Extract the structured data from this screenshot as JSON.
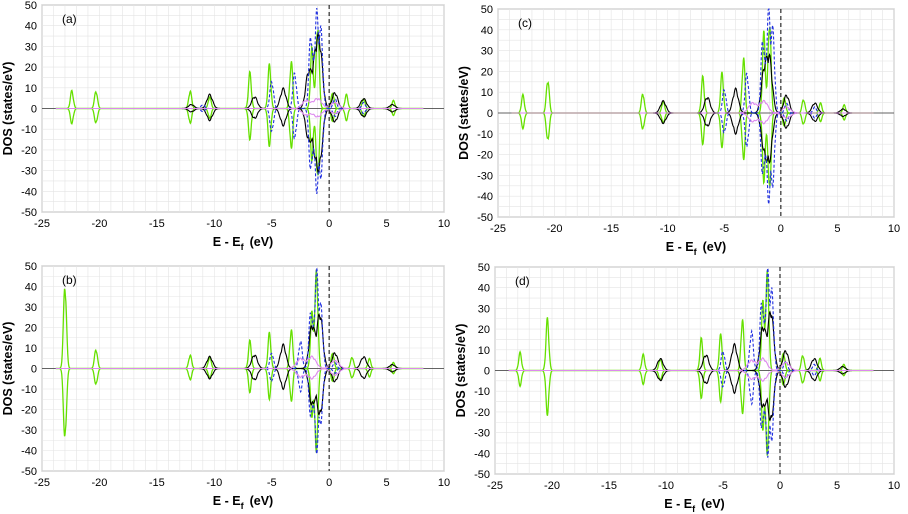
{
  "chart_data": [
    {
      "type": "line",
      "panel_label": "(a)",
      "xlabel_main": "E - E",
      "xlabel_sub": "f",
      "xlabel_unit": "(eV)",
      "ylabel": "DOS (states/eV)",
      "xlim": [
        -25,
        10
      ],
      "ylim": [
        -50,
        50
      ],
      "xticks": [
        "-25",
        "-20",
        "-15",
        "-10",
        "-5",
        "0",
        "5",
        "10"
      ],
      "yticks": [
        "-50",
        "-40",
        "-30",
        "-20",
        "-10",
        "0",
        "10",
        "20",
        "30",
        "40",
        "50"
      ],
      "grid": true,
      "fermi_line_x": 0,
      "series": [
        {
          "color": "#66e000",
          "style": "solid",
          "peaks": [
            [
              -22.4,
              9
            ],
            [
              -20.3,
              9
            ],
            [
              -12.1,
              9
            ],
            [
              -10.4,
              6
            ],
            [
              -6.9,
              18
            ],
            [
              -5.2,
              22
            ],
            [
              -3.3,
              24
            ],
            [
              -1.5,
              30
            ],
            [
              -1,
              44
            ],
            [
              0.3,
              8
            ],
            [
              1.5,
              7
            ],
            [
              3,
              5
            ],
            [
              5.6,
              4
            ]
          ]
        },
        {
          "color": "#000000",
          "style": "solid",
          "peaks": [
            [
              -12,
              2
            ],
            [
              -10.4,
              7
            ],
            [
              -6.5,
              6
            ],
            [
              -4,
              10
            ],
            [
              -1.8,
              18
            ],
            [
              -1.2,
              22
            ],
            [
              -0.8,
              28
            ],
            [
              0.5,
              8
            ],
            [
              3,
              5
            ],
            [
              5.5,
              2
            ]
          ]
        },
        {
          "color": "#2030e0",
          "style": "dashed",
          "peaks": [
            [
              -11,
              2
            ],
            [
              -5,
              14
            ],
            [
              -3,
              18
            ],
            [
              -1.6,
              38
            ],
            [
              -1.1,
              47
            ],
            [
              -0.7,
              38
            ],
            [
              0.5,
              5
            ],
            [
              3,
              3
            ]
          ]
        },
        {
          "color": "#dd88ee",
          "style": "solid",
          "peaks": [
            [
              -2,
              4
            ],
            [
              -1,
              5
            ],
            [
              0.5,
              3
            ]
          ]
        }
      ]
    },
    {
      "type": "line",
      "panel_label": "(b)",
      "xlabel_main": "E - E",
      "xlabel_sub": "f",
      "xlabel_unit": "(eV)",
      "ylabel": "DOS (states/eV)",
      "xlim": [
        -25,
        10
      ],
      "ylim": [
        -50,
        50
      ],
      "xticks": [
        "-25",
        "-20",
        "-15",
        "-10",
        "-5",
        "0",
        "5",
        "10"
      ],
      "yticks": [
        "-50",
        "-40",
        "-30",
        "-20",
        "-10",
        "0",
        "10",
        "20",
        "30",
        "40",
        "50"
      ],
      "grid": true,
      "fermi_line_x": 0,
      "series": [
        {
          "color": "#66e000",
          "style": "solid",
          "peaks": [
            [
              -23,
              44
            ],
            [
              -20.3,
              10
            ],
            [
              -12.1,
              7
            ],
            [
              -10.4,
              6
            ],
            [
              -6.9,
              14
            ],
            [
              -5.2,
              18
            ],
            [
              -3.3,
              20
            ],
            [
              -1.5,
              28
            ],
            [
              -1.1,
              50
            ],
            [
              0.3,
              8
            ],
            [
              2,
              6
            ],
            [
              3.5,
              5
            ],
            [
              5.6,
              3
            ]
          ]
        },
        {
          "color": "#000000",
          "style": "solid",
          "peaks": [
            [
              -10.4,
              6
            ],
            [
              -6.5,
              7
            ],
            [
              -4,
              12
            ],
            [
              -1.5,
              22
            ],
            [
              -0.8,
              28
            ],
            [
              0.5,
              8
            ],
            [
              3,
              6
            ],
            [
              5.5,
              2
            ]
          ]
        },
        {
          "color": "#2030e0",
          "style": "dashed",
          "peaks": [
            [
              -5,
              8
            ],
            [
              -2.5,
              14
            ],
            [
              -1.6,
              30
            ],
            [
              -1.1,
              48
            ],
            [
              -0.7,
              30
            ],
            [
              0.5,
              3
            ]
          ]
        },
        {
          "color": "#dd88ee",
          "style": "solid",
          "peaks": [
            [
              -2.5,
              5
            ],
            [
              -1.5,
              6
            ],
            [
              0.5,
              4
            ]
          ]
        }
      ]
    },
    {
      "type": "line",
      "panel_label": "(c)",
      "xlabel_main": "E - E",
      "xlabel_sub": "f",
      "xlabel_unit": "(eV)",
      "ylabel": "DOS (states/eV)",
      "xlim": [
        -25,
        10
      ],
      "ylim": [
        -50,
        50
      ],
      "xticks": [
        "-25",
        "-20",
        "-15",
        "-10",
        "-5",
        "0",
        "5",
        "10"
      ],
      "yticks": [
        "-50",
        "-40",
        "-30",
        "-20",
        "-10",
        "0",
        "10",
        "20",
        "30",
        "40",
        "50"
      ],
      "grid": true,
      "fermi_line_x": 0,
      "series": [
        {
          "color": "#66e000",
          "style": "solid",
          "peaks": [
            [
              -22.8,
              9
            ],
            [
              -20.6,
              17
            ],
            [
              -12.2,
              10
            ],
            [
              -10.4,
              6
            ],
            [
              -6.9,
              18
            ],
            [
              -5.2,
              20
            ],
            [
              -3.3,
              28
            ],
            [
              -1.5,
              40
            ],
            [
              -1,
              48
            ],
            [
              0.3,
              8
            ],
            [
              2,
              7
            ],
            [
              3.5,
              5
            ],
            [
              5.6,
              4
            ]
          ]
        },
        {
          "color": "#000000",
          "style": "solid",
          "peaks": [
            [
              -10.4,
              6
            ],
            [
              -6.5,
              8
            ],
            [
              -4,
              12
            ],
            [
              -1.5,
              20
            ],
            [
              -1.0,
              26
            ],
            [
              0.5,
              9
            ],
            [
              3,
              5
            ],
            [
              5.5,
              2
            ]
          ]
        },
        {
          "color": "#2030e0",
          "style": "dashed",
          "peaks": [
            [
              -5,
              12
            ],
            [
              -3,
              20
            ],
            [
              -1.6,
              38
            ],
            [
              -1.1,
              50
            ],
            [
              -0.7,
              40
            ],
            [
              0.5,
              5
            ],
            [
              3,
              3
            ]
          ]
        },
        {
          "color": "#dd88ee",
          "style": "solid",
          "peaks": [
            [
              -2.5,
              5
            ],
            [
              -1.5,
              6
            ],
            [
              0.5,
              3
            ]
          ]
        }
      ]
    },
    {
      "type": "line",
      "panel_label": "(d)",
      "xlabel_main": "E - E",
      "xlabel_sub": "f",
      "xlabel_unit": "(eV)",
      "ylabel": "DOS (states/eV)",
      "xlim": [
        -25,
        10
      ],
      "ylim": [
        -50,
        50
      ],
      "xticks": [
        "-25",
        "-20",
        "-15",
        "-10",
        "-5",
        "0",
        "5",
        "10"
      ],
      "yticks": [
        "-50",
        "-40",
        "-30",
        "-20",
        "-10",
        "0",
        "10",
        "20",
        "30",
        "40",
        "50"
      ],
      "grid": true,
      "fermi_line_x": 0,
      "series": [
        {
          "color": "#66e000",
          "style": "solid",
          "peaks": [
            [
              -22.8,
              9
            ],
            [
              -20.4,
              26
            ],
            [
              -12,
              8
            ],
            [
              -10.5,
              6
            ],
            [
              -6.9,
              16
            ],
            [
              -5.2,
              18
            ],
            [
              -3.3,
              26
            ],
            [
              -1.5,
              34
            ],
            [
              -1.1,
              50
            ],
            [
              0.3,
              9
            ],
            [
              2,
              8
            ],
            [
              3.5,
              6
            ],
            [
              5.6,
              3
            ]
          ]
        },
        {
          "color": "#000000",
          "style": "solid",
          "peaks": [
            [
              -10.5,
              6
            ],
            [
              -6.5,
              8
            ],
            [
              -4,
              13
            ],
            [
              -1.5,
              22
            ],
            [
              -0.8,
              30
            ],
            [
              0.5,
              10
            ],
            [
              3,
              6
            ],
            [
              5.5,
              2
            ]
          ]
        },
        {
          "color": "#2030e0",
          "style": "dashed",
          "peaks": [
            [
              -5,
              10
            ],
            [
              -2.5,
              20
            ],
            [
              -1.6,
              36
            ],
            [
              -1.1,
              48
            ],
            [
              -0.7,
              38
            ],
            [
              0.5,
              5
            ],
            [
              3,
              3
            ]
          ]
        },
        {
          "color": "#dd88ee",
          "style": "solid",
          "peaks": [
            [
              -2.5,
              5
            ],
            [
              -1.5,
              6
            ],
            [
              0.5,
              4
            ]
          ]
        }
      ]
    }
  ]
}
